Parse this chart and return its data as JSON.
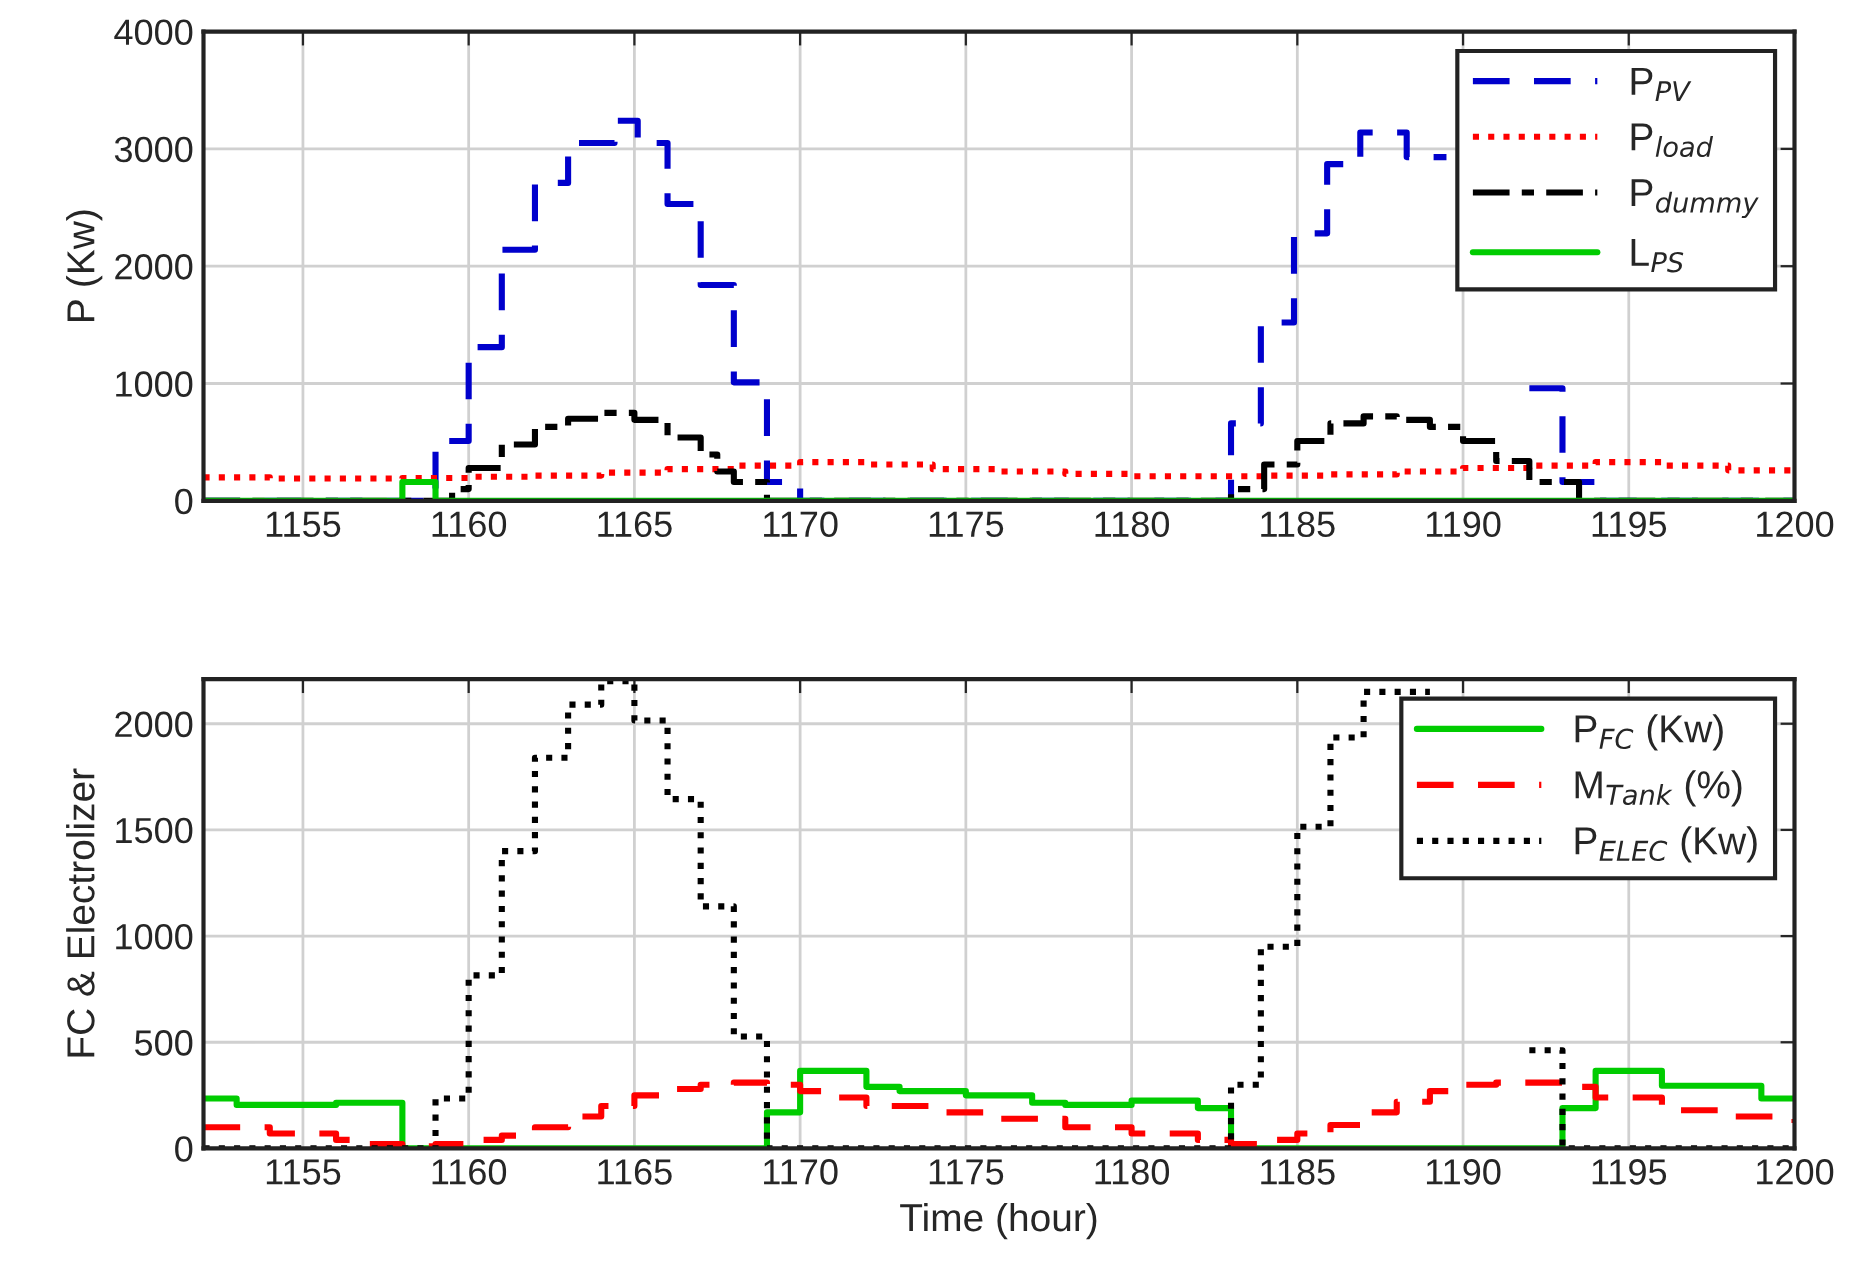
{
  "chart_data": [
    {
      "type": "step",
      "ylabel": "P (Kw)",
      "xlim": [
        1152,
        1200
      ],
      "xticks": [
        1155,
        1160,
        1165,
        1170,
        1175,
        1180,
        1185,
        1190,
        1195,
        1200
      ],
      "ylim": [
        0,
        4000
      ],
      "yticks": [
        0,
        1000,
        2000,
        3000,
        4000
      ],
      "grid": true,
      "legend": "top right",
      "series": [
        {
          "name": "P$_{PV}$",
          "color": "#0000cc",
          "line_style": "dashed",
          "x": [
            1152,
            1159,
            1160,
            1161,
            1162,
            1163,
            1164.4,
            1165.1,
            1166,
            1167,
            1168,
            1169,
            1170,
            1183,
            1183.9,
            1184.9,
            1185.9,
            1186.9,
            1188.3,
            1189.5,
            1192,
            1193,
            1194,
            1200
          ],
          "values": [
            0,
            510,
            1310,
            2140,
            2710,
            3050,
            3240,
            3050,
            2530,
            1840,
            1010,
            160,
            0,
            660,
            1520,
            2280,
            2870,
            3140,
            2930,
            null,
            960,
            160,
            0,
            0
          ]
        },
        {
          "name": "P$_{load}$",
          "color": "#ff0000",
          "line_style": "dotted",
          "x": [
            1152,
            1154,
            1156,
            1158,
            1160,
            1162,
            1164,
            1166,
            1168,
            1170,
            1172,
            1174,
            1176,
            1178,
            1180,
            1182,
            1184,
            1186,
            1188,
            1190,
            1192,
            1194,
            1196,
            1198,
            1200
          ],
          "values": [
            200,
            190,
            190,
            195,
            205,
            215,
            240,
            270,
            300,
            330,
            310,
            270,
            250,
            230,
            210,
            210,
            215,
            225,
            250,
            280,
            300,
            330,
            300,
            260,
            230
          ]
        },
        {
          "name": "P$_{dummy}$",
          "color": "#000000",
          "line_style": "dashdot",
          "x": [
            1152,
            1159.5,
            1160,
            1161,
            1162,
            1163,
            1164,
            1165,
            1166,
            1167,
            1167.5,
            1168,
            1169,
            1183,
            1184,
            1185,
            1186,
            1187,
            1188,
            1189,
            1190,
            1191,
            1192,
            1193.5,
            1200
          ],
          "values": [
            0,
            100,
            280,
            480,
            630,
            700,
            750,
            690,
            540,
            395,
            250,
            160,
            0,
            100,
            310,
            510,
            660,
            720,
            690,
            630,
            510,
            340,
            160,
            0,
            0
          ]
        },
        {
          "name": "L$_{PS}$",
          "color": "#00cc00",
          "line_style": "solid",
          "x": [
            1152,
            1158,
            1159,
            1200
          ],
          "values": [
            0,
            160,
            0,
            0
          ]
        }
      ]
    },
    {
      "type": "step",
      "xlabel": "Time (hour)",
      "ylabel": "FC & Electrolizer",
      "xlim": [
        1152,
        1200
      ],
      "xticks": [
        1155,
        1160,
        1165,
        1170,
        1175,
        1180,
        1185,
        1190,
        1195,
        1200
      ],
      "ylim": [
        0,
        2210
      ],
      "yticks": [
        0,
        500,
        1000,
        1500,
        2000
      ],
      "grid": true,
      "legend": "top right",
      "series": [
        {
          "name": "P$_{FC}$ (Kw)",
          "color": "#00cc00",
          "line_style": "solid",
          "x": [
            1152,
            1153,
            1156,
            1158,
            1169,
            1170,
            1172,
            1173,
            1175,
            1177,
            1178,
            1180,
            1182,
            1183,
            1193,
            1194,
            1196,
            1199,
            1200
          ],
          "values": [
            235,
            205,
            215,
            0,
            170,
            365,
            290,
            270,
            250,
            215,
            205,
            225,
            190,
            0,
            190,
            365,
            295,
            235,
            235
          ]
        },
        {
          "name": "M$_{Tank}$ (%)",
          "color": "#ff0000",
          "line_style": "dashed",
          "x": [
            1152,
            1154,
            1156,
            1157,
            1158,
            1159,
            1160,
            1161,
            1162,
            1163,
            1164,
            1165,
            1166,
            1167,
            1168,
            1169,
            1170,
            1171,
            1172,
            1174,
            1176,
            1178,
            1180,
            1182,
            1183,
            1184,
            1185,
            1186,
            1187,
            1188,
            1189,
            1190,
            1191,
            1192,
            1193,
            1194,
            1196,
            1198,
            1200
          ],
          "values": [
            100,
            70,
            40,
            20,
            10,
            20,
            40,
            60,
            100,
            150,
            200,
            250,
            280,
            300,
            310,
            300,
            270,
            240,
            200,
            170,
            140,
            100,
            70,
            40,
            20,
            40,
            70,
            110,
            170,
            220,
            270,
            300,
            310,
            310,
            290,
            240,
            180,
            150,
            120
          ]
        },
        {
          "name": "P$_{ELEC}$ (Kw)",
          "color": "#000000",
          "line_style": "dotted",
          "x": [
            1152,
            1159,
            1160,
            1161,
            1162,
            1163,
            1164,
            1165,
            1166,
            1167,
            1168,
            1169,
            1183,
            1183.9,
            1185,
            1186,
            1187,
            1189,
            1192,
            1193,
            1200
          ],
          "values": [
            0,
            235,
            815,
            1400,
            1840,
            2090,
            2200,
            2015,
            1645,
            1140,
            527,
            0,
            300,
            950,
            1515,
            1935,
            2150,
            null,
            462,
            0,
            0
          ]
        }
      ]
    }
  ]
}
